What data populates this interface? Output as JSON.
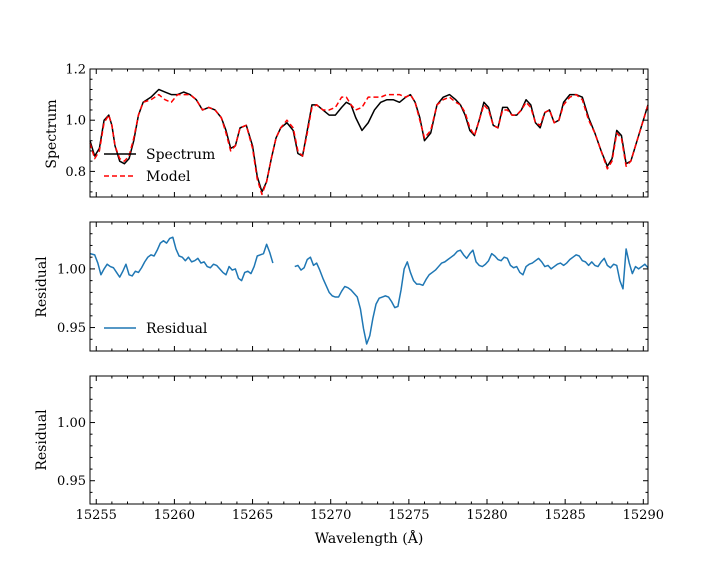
{
  "chart_data": [
    {
      "type": "line",
      "panel": "spectrum",
      "ylabel": "Spectrum",
      "xlim": [
        15254.6,
        15290.3
      ],
      "ylim": [
        0.7,
        1.2
      ],
      "yticks": [
        0.8,
        1.0,
        1.2
      ],
      "ytick_labels": [
        "0.8",
        "1.0",
        "1.2"
      ],
      "legend_position": "lower-left",
      "series": [
        {
          "name": "Spectrum",
          "color": "#000000",
          "style": "solid",
          "x": [
            15254.6,
            15254.9,
            15255.2,
            15255.5,
            15255.8,
            15256.0,
            15256.2,
            15256.5,
            15256.8,
            15257.1,
            15257.4,
            15257.7,
            15258.0,
            15258.5,
            15259.0,
            15259.4,
            15259.8,
            15260.2,
            15260.6,
            15261.0,
            15261.4,
            15261.8,
            15262.2,
            15262.6,
            15263.0,
            15263.3,
            15263.6,
            15263.9,
            15264.2,
            15264.6,
            15265.0,
            15265.3,
            15265.6,
            15265.9,
            15266.2,
            15266.5,
            15266.8,
            15267.2,
            15267.6,
            15267.9,
            15268.2,
            15268.5,
            15268.8,
            15269.1,
            15269.5,
            15269.9,
            15270.3,
            15270.7,
            15271.0,
            15271.3,
            15271.6,
            15272.0,
            15272.4,
            15272.8,
            15273.2,
            15273.6,
            15274.0,
            15274.4,
            15274.8,
            15275.1,
            15275.4,
            15275.7,
            15276.0,
            15276.4,
            15276.8,
            15277.2,
            15277.6,
            15278.0,
            15278.3,
            15278.6,
            15278.9,
            15279.2,
            15279.5,
            15279.8,
            15280.1,
            15280.4,
            15280.7,
            15281.0,
            15281.3,
            15281.6,
            15281.9,
            15282.2,
            15282.5,
            15282.8,
            15283.1,
            15283.4,
            15283.7,
            15284.0,
            15284.3,
            15284.6,
            15284.9,
            15285.3,
            15285.7,
            15286.1,
            15286.5,
            15286.9,
            15287.3,
            15287.7,
            15288.0,
            15288.3,
            15288.6,
            15288.9,
            15289.2,
            15289.5,
            15289.8,
            15290.1,
            15290.3
          ],
          "y": [
            0.92,
            0.86,
            0.89,
            1.0,
            1.02,
            0.98,
            0.9,
            0.84,
            0.83,
            0.85,
            0.92,
            1.02,
            1.07,
            1.09,
            1.12,
            1.11,
            1.1,
            1.1,
            1.11,
            1.1,
            1.08,
            1.04,
            1.05,
            1.04,
            1.01,
            0.96,
            0.89,
            0.9,
            0.97,
            0.98,
            0.9,
            0.78,
            0.72,
            0.76,
            0.85,
            0.93,
            0.97,
            0.99,
            0.96,
            0.87,
            0.86,
            0.96,
            1.06,
            1.06,
            1.04,
            1.02,
            1.02,
            1.05,
            1.07,
            1.06,
            1.01,
            0.96,
            0.99,
            1.04,
            1.07,
            1.08,
            1.08,
            1.07,
            1.09,
            1.1,
            1.07,
            1.01,
            0.92,
            0.95,
            1.06,
            1.09,
            1.1,
            1.08,
            1.06,
            1.02,
            0.96,
            0.94,
            1.0,
            1.07,
            1.05,
            0.98,
            0.97,
            1.05,
            1.05,
            1.02,
            1.02,
            1.04,
            1.08,
            1.06,
            0.99,
            0.97,
            1.03,
            1.04,
            0.99,
            1.0,
            1.07,
            1.1,
            1.1,
            1.09,
            1.01,
            0.95,
            0.88,
            0.82,
            0.85,
            0.96,
            0.94,
            0.83,
            0.84,
            0.9,
            0.96,
            1.02,
            1.06
          ]
        },
        {
          "name": "Model",
          "color": "#ff0000",
          "style": "dashed",
          "x": [
            15254.6,
            15254.9,
            15255.2,
            15255.5,
            15255.8,
            15256.0,
            15256.2,
            15256.5,
            15256.8,
            15257.1,
            15257.4,
            15257.7,
            15258.0,
            15258.5,
            15259.0,
            15259.4,
            15259.8,
            15260.2,
            15260.6,
            15261.0,
            15261.4,
            15261.8,
            15262.2,
            15262.6,
            15263.0,
            15263.3,
            15263.6,
            15263.9,
            15264.2,
            15264.6,
            15265.0,
            15265.3,
            15265.6,
            15265.9,
            15266.2,
            15266.5,
            15266.8,
            15267.2,
            15267.6,
            15267.9,
            15268.2,
            15268.5,
            15268.8,
            15269.1,
            15269.5,
            15269.9,
            15270.3,
            15270.7,
            15271.0,
            15271.3,
            15271.6,
            15272.0,
            15272.4,
            15272.8,
            15273.2,
            15273.6,
            15274.0,
            15274.4,
            15274.8,
            15275.1,
            15275.4,
            15275.7,
            15276.0,
            15276.4,
            15276.8,
            15277.2,
            15277.6,
            15278.0,
            15278.3,
            15278.6,
            15278.9,
            15279.2,
            15279.5,
            15279.8,
            15280.1,
            15280.4,
            15280.7,
            15281.0,
            15281.3,
            15281.6,
            15281.9,
            15282.2,
            15282.5,
            15282.8,
            15283.1,
            15283.4,
            15283.7,
            15284.0,
            15284.3,
            15284.6,
            15284.9,
            15285.3,
            15285.7,
            15286.1,
            15286.5,
            15286.9,
            15287.3,
            15287.7,
            15288.0,
            15288.3,
            15288.6,
            15288.9,
            15289.2,
            15289.5,
            15289.8,
            15290.1,
            15290.3
          ],
          "y": [
            0.91,
            0.85,
            0.88,
            0.99,
            1.02,
            0.98,
            0.9,
            0.85,
            0.84,
            0.86,
            0.93,
            1.02,
            1.07,
            1.08,
            1.1,
            1.08,
            1.07,
            1.1,
            1.1,
            1.1,
            1.08,
            1.04,
            1.05,
            1.04,
            1.01,
            0.95,
            0.88,
            0.9,
            0.97,
            0.98,
            0.89,
            0.77,
            0.71,
            0.76,
            0.85,
            0.93,
            0.97,
            1.0,
            0.97,
            0.88,
            0.86,
            0.95,
            1.05,
            1.06,
            1.04,
            1.04,
            1.05,
            1.09,
            1.09,
            1.06,
            1.04,
            1.05,
            1.09,
            1.09,
            1.09,
            1.1,
            1.1,
            1.1,
            1.09,
            1.1,
            1.07,
            1.0,
            0.93,
            0.96,
            1.06,
            1.08,
            1.09,
            1.07,
            1.06,
            1.03,
            0.97,
            0.94,
            1.0,
            1.06,
            1.04,
            0.98,
            0.97,
            1.04,
            1.04,
            1.02,
            1.02,
            1.04,
            1.07,
            1.05,
            0.99,
            0.98,
            1.03,
            1.04,
            0.99,
            1.0,
            1.06,
            1.09,
            1.1,
            1.08,
            1.0,
            0.95,
            0.88,
            0.81,
            0.84,
            0.95,
            0.93,
            0.82,
            0.84,
            0.9,
            0.96,
            1.02,
            1.06
          ]
        }
      ]
    },
    {
      "type": "line",
      "panel": "residual",
      "ylabel": "Residual",
      "xlim": [
        15254.6,
        15290.3
      ],
      "ylim": [
        0.93,
        1.04
      ],
      "yticks": [
        0.95,
        1.0
      ],
      "ytick_labels": [
        "0.95",
        "1.00"
      ],
      "legend_position": "lower-left",
      "series": [
        {
          "name": "Residual",
          "color": "#1f77b4",
          "style": "solid",
          "segments": [
            {
              "x": [
                15254.6,
                15254.9,
                15255.1,
                15255.3,
                15255.5,
                15255.7,
                15255.9,
                15256.1,
                15256.3,
                15256.5,
                15256.7,
                15256.9,
                15257.1,
                15257.3,
                15257.5,
                15257.7,
                15257.9,
                15258.1,
                15258.3,
                15258.5,
                15258.7,
                15258.9,
                15259.1,
                15259.3,
                15259.5,
                15259.7,
                15259.9,
                15260.1,
                15260.3,
                15260.5,
                15260.7,
                15260.9,
                15261.1,
                15261.3,
                15261.5,
                15261.7,
                15261.9,
                15262.1,
                15262.3,
                15262.5,
                15262.7,
                15262.9,
                15263.1,
                15263.3,
                15263.5,
                15263.7,
                15263.9,
                15264.1,
                15264.3,
                15264.5,
                15264.7,
                15264.9,
                15265.1,
                15265.3,
                15265.5,
                15265.7,
                15265.9,
                15266.1,
                15266.3
              ],
              "y": [
                1.013,
                1.012,
                1.005,
                0.995,
                1.0,
                1.004,
                1.002,
                1.001,
                0.997,
                0.993,
                0.998,
                1.004,
                0.995,
                0.994,
                0.998,
                0.997,
                1.001,
                1.006,
                1.01,
                1.012,
                1.011,
                1.016,
                1.022,
                1.024,
                1.022,
                1.026,
                1.027,
                1.017,
                1.011,
                1.01,
                1.007,
                1.01,
                1.006,
                1.007,
                1.009,
                1.005,
                1.006,
                1.002,
                1.001,
                1.004,
                1.003,
                1.0,
                0.997,
                0.995,
                1.002,
                0.999,
                1.0,
                0.992,
                0.99,
                0.997,
                0.998,
                0.996,
                1.002,
                1.011,
                1.012,
                1.013,
                1.021,
                1.014,
                1.005
              ]
            },
            {
              "x": [
                15267.7,
                15267.9,
                15268.1,
                15268.3,
                15268.5,
                15268.7,
                15268.9,
                15269.1,
                15269.3,
                15269.5,
                15269.7,
                15269.9,
                15270.1,
                15270.3,
                15270.5,
                15270.7,
                15270.9,
                15271.1,
                15271.3,
                15271.5,
                15271.7,
                15271.9,
                15272.1,
                15272.3,
                15272.5,
                15272.7,
                15272.9,
                15273.1,
                15273.3,
                15273.5,
                15273.7,
                15273.9,
                15274.1,
                15274.3,
                15274.5,
                15274.7,
                15274.9,
                15275.1,
                15275.3,
                15275.5,
                15275.7,
                15275.9,
                15276.1,
                15276.3,
                15276.5,
                15276.7,
                15276.9,
                15277.1,
                15277.3,
                15277.5,
                15277.7,
                15277.9,
                15278.1,
                15278.3,
                15278.5,
                15278.7,
                15278.9,
                15279.1,
                15279.3,
                15279.5,
                15279.7,
                15279.9,
                15280.1,
                15280.3,
                15280.5,
                15280.7,
                15280.9,
                15281.1,
                15281.3,
                15281.5,
                15281.7,
                15281.9,
                15282.1,
                15282.3,
                15282.5,
                15282.7,
                15282.9,
                15283.1,
                15283.3,
                15283.5,
                15283.7,
                15283.9,
                15284.1,
                15284.3,
                15284.5,
                15284.7,
                15284.9,
                15285.1,
                15285.3,
                15285.5,
                15285.7,
                15285.9,
                15286.1,
                15286.3,
                15286.5,
                15286.7,
                15286.9,
                15287.1,
                15287.3,
                15287.5,
                15287.7,
                15287.9,
                15288.1,
                15288.3,
                15288.5,
                15288.7,
                15288.9,
                15289.1,
                15289.3,
                15289.5,
                15289.7,
                15289.9,
                15290.1,
                15290.3
              ],
              "y": [
                1.002,
                1.003,
                0.999,
                1.001,
                1.008,
                1.01,
                1.003,
                1.005,
                0.999,
                0.992,
                0.986,
                0.98,
                0.977,
                0.976,
                0.976,
                0.981,
                0.985,
                0.984,
                0.982,
                0.979,
                0.976,
                0.966,
                0.949,
                0.936,
                0.943,
                0.958,
                0.97,
                0.975,
                0.976,
                0.977,
                0.976,
                0.972,
                0.967,
                0.968,
                0.982,
                1.0,
                1.006,
                0.997,
                0.99,
                0.987,
                0.987,
                0.986,
                0.991,
                0.995,
                0.997,
                0.999,
                1.002,
                1.005,
                1.006,
                1.008,
                1.01,
                1.012,
                1.015,
                1.016,
                1.012,
                1.009,
                1.013,
                1.016,
                1.006,
                1.003,
                1.002,
                1.004,
                1.007,
                1.013,
                1.011,
                1.008,
                1.007,
                1.01,
                1.009,
                1.003,
                1.001,
                1.002,
                0.997,
                0.995,
                1.002,
                1.004,
                1.005,
                1.007,
                1.009,
                1.006,
                1.002,
                1.003,
                1.0,
                1.002,
                1.004,
                1.005,
                1.003,
                1.005,
                1.008,
                1.01,
                1.012,
                1.011,
                1.007,
                1.006,
                1.003,
                1.006,
                1.003,
                1.002,
                1.006,
                1.009,
                1.003,
                1.001,
                1.004,
                1.003,
                0.99,
                0.983,
                1.017,
                1.005,
                0.996,
                1.002,
                1.0,
                1.002,
                1.004,
                1.001
              ]
            }
          ]
        }
      ]
    },
    {
      "type": "line",
      "panel": "residual-empty",
      "ylabel": "Residual",
      "xlabel": "Wavelength (Å)",
      "xlim": [
        15254.6,
        15290.3
      ],
      "xticks": [
        15255,
        15260,
        15265,
        15270,
        15275,
        15280,
        15285,
        15290
      ],
      "xtick_labels": [
        "15255",
        "15260",
        "15265",
        "15270",
        "15275",
        "15280",
        "15285",
        "15290"
      ],
      "ylim": [
        0.93,
        1.04
      ],
      "yticks": [
        0.95,
        1.0
      ],
      "ytick_labels": [
        "0.95",
        "1.00"
      ],
      "series": []
    }
  ]
}
